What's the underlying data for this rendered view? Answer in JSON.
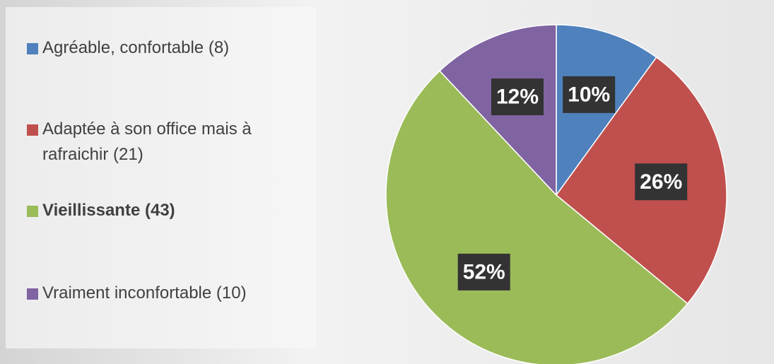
{
  "chart_data": {
    "type": "pie",
    "categories": [
      "Agréable, confortable (8)",
      "Adaptée à son office mais à rafraichir (21)",
      "Vieillissante (43)",
      "Vraiment inconfortable (10)"
    ],
    "values": [
      10,
      26,
      52,
      12
    ],
    "value_labels": [
      "10%",
      "26%",
      "52%",
      "12%"
    ],
    "colors": [
      "#4f81bd",
      "#c0504d",
      "#9bbb59",
      "#8064a2"
    ]
  }
}
